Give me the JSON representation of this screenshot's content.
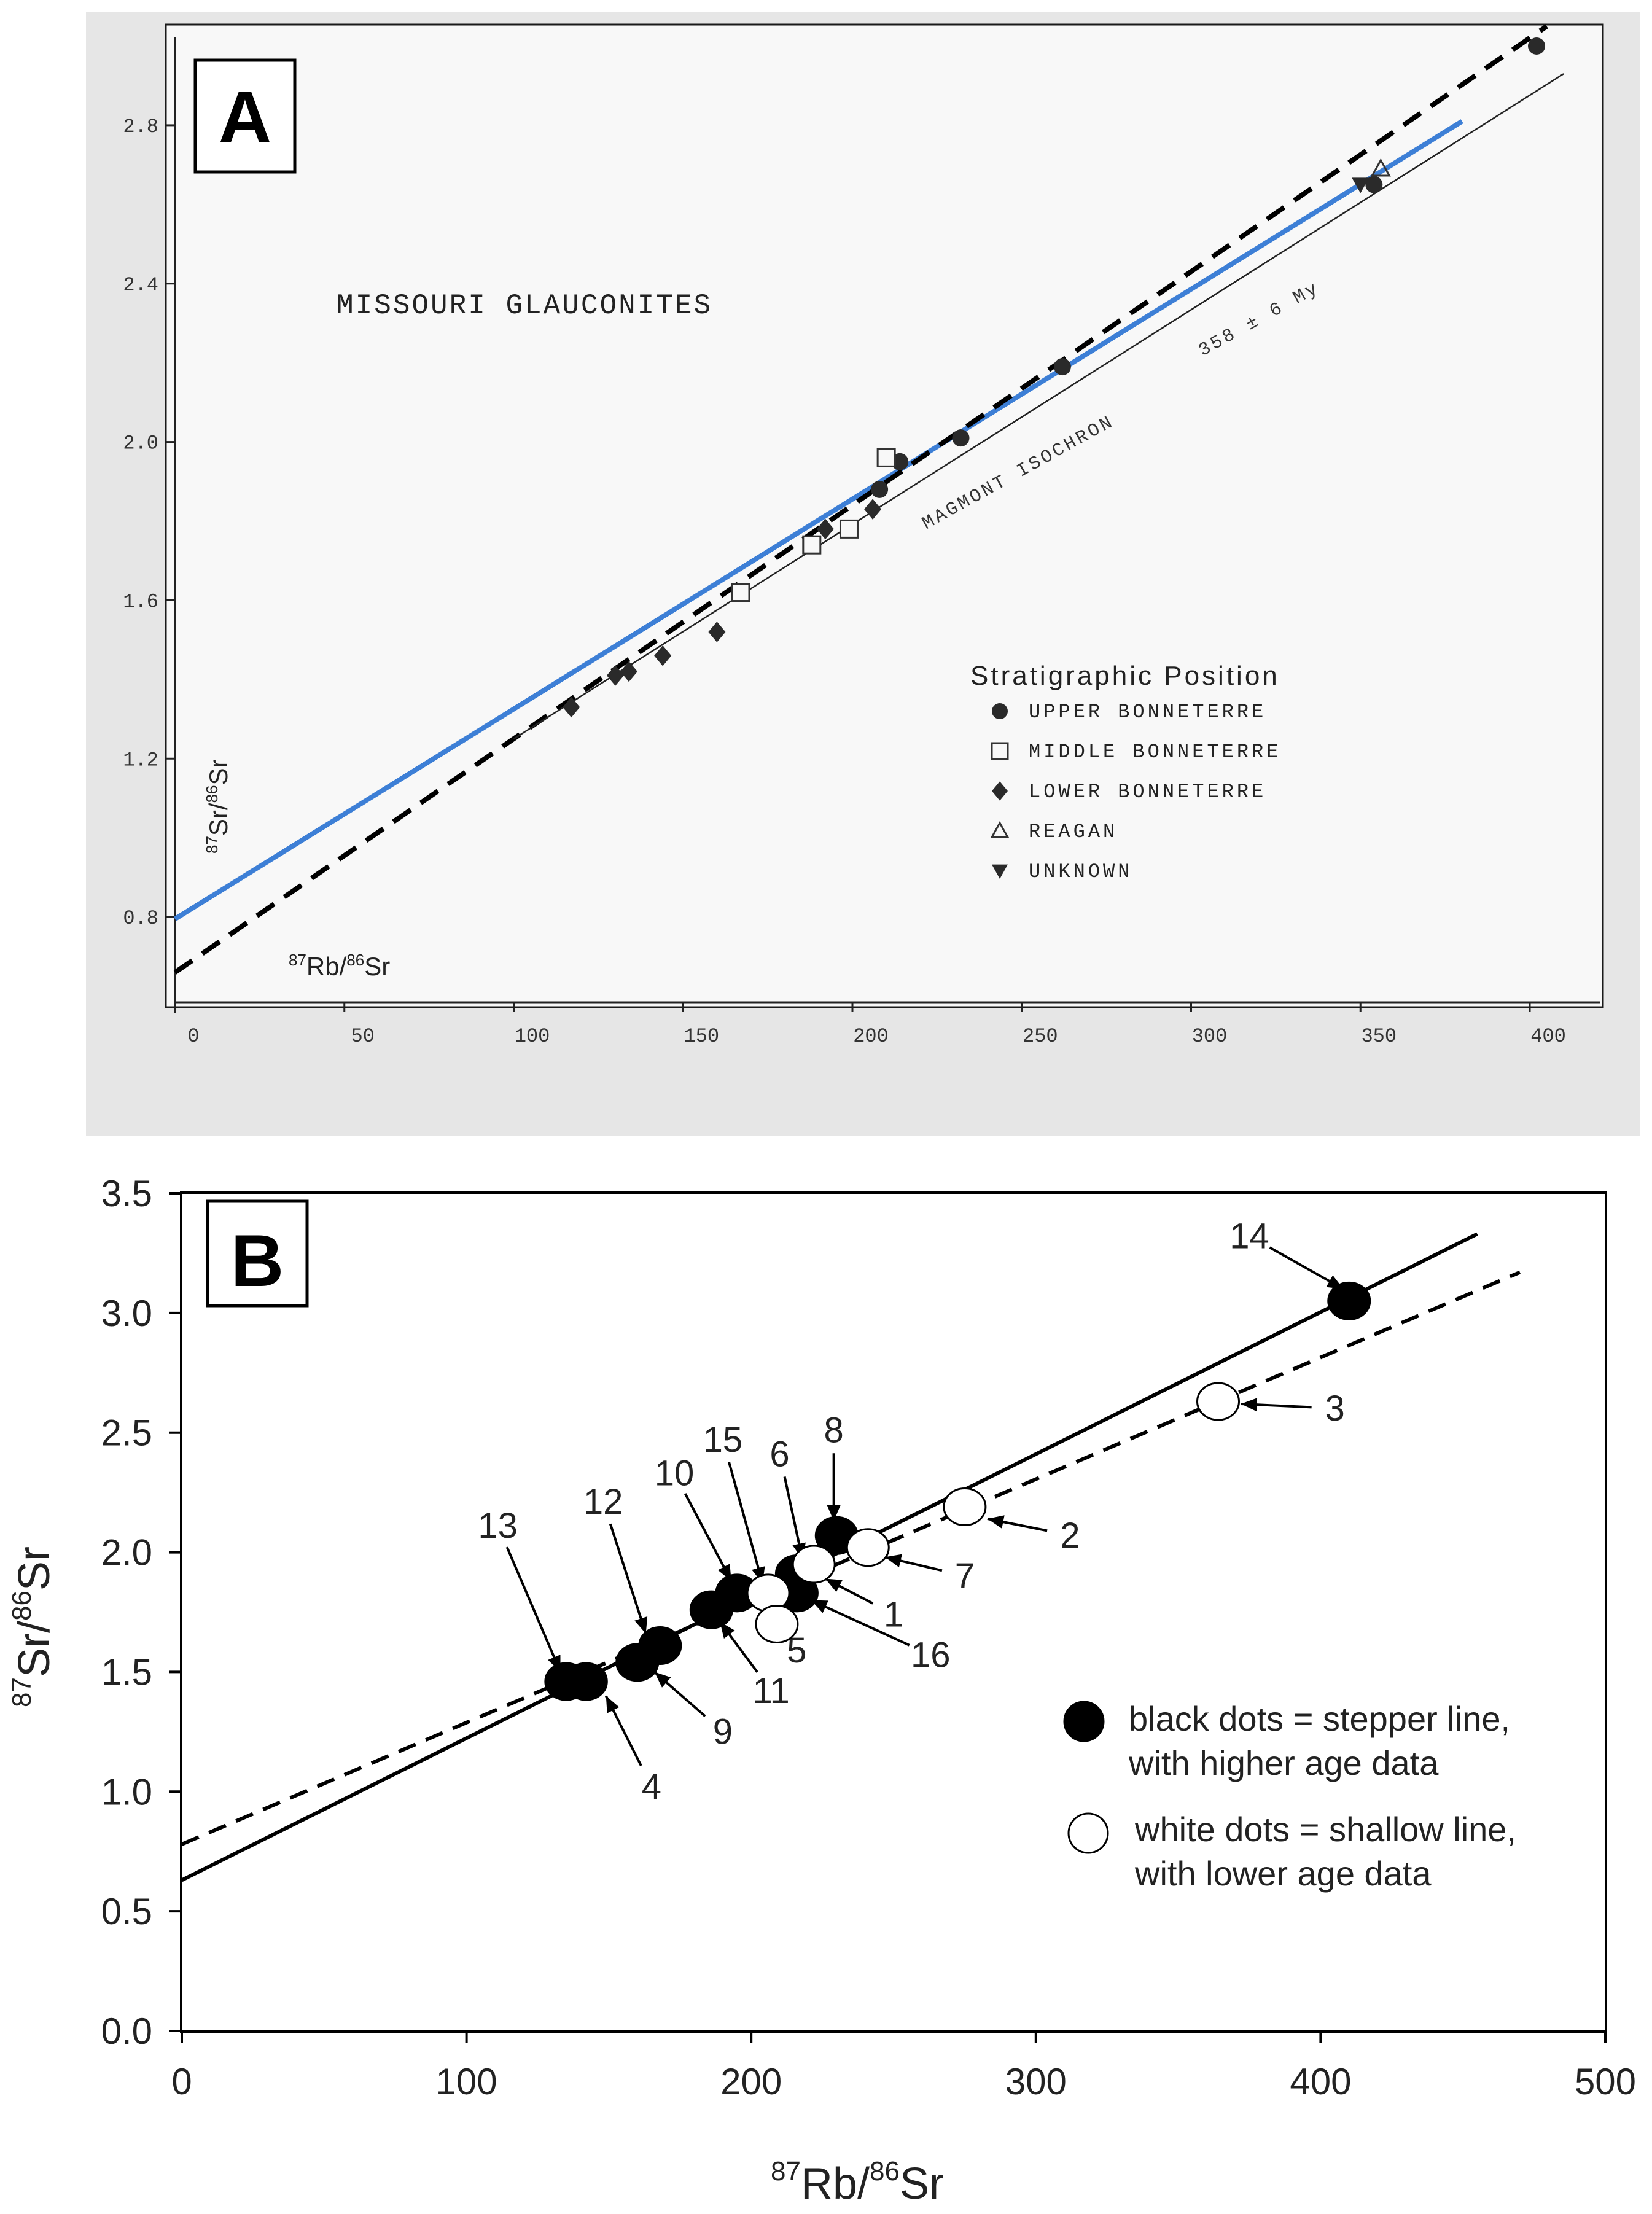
{
  "chart_data": [
    {
      "panel": "A",
      "type": "scatter",
      "title": "MISSOURI GLAUCONITES",
      "xlabel_sup1": "87",
      "xlabel_base1": "Rb/",
      "xlabel_sup2": "86",
      "xlabel_base2": "Sr",
      "ylabel_sup1": "87",
      "ylabel_base1": "Sr/",
      "ylabel_sup2": "86",
      "ylabel_base2": "Sr",
      "xlim": [
        0,
        400
      ],
      "ylim": [
        0.6,
        3.0
      ],
      "x_ticks": [
        0,
        50,
        100,
        150,
        200,
        250,
        300,
        350,
        400
      ],
      "x_tick_labels": [
        "0",
        "50",
        "100",
        "150",
        "200",
        "250",
        "300",
        "350",
        "400"
      ],
      "y_ticks": [
        0.8,
        1.2,
        1.6,
        2.0,
        2.4,
        2.8
      ],
      "y_tick_labels": [
        "0.8",
        "1.2",
        "1.6",
        "2.0",
        "2.4",
        "2.8"
      ],
      "isochron_label": "MAGMONT ISOCHRON",
      "age_label": "358 ± 6 My",
      "legend_title": "Stratigraphic Position",
      "legend": [
        {
          "marker": "circle",
          "label": "UPPER BONNETERRE"
        },
        {
          "marker": "square",
          "label": "MIDDLE BONNETERRE"
        },
        {
          "marker": "diamond",
          "label": "LOWER BONNETERRE"
        },
        {
          "marker": "triangle-up",
          "label": "REAGAN"
        },
        {
          "marker": "triangle-down",
          "label": "UNKNOWN"
        }
      ],
      "lines": [
        {
          "name": "blue fit",
          "style": "solid",
          "color": "#3d7fd6",
          "x": [
            0,
            380
          ],
          "y": [
            0.795,
            2.81
          ]
        },
        {
          "name": "dashed fit",
          "style": "dashed",
          "color": "#000000",
          "x": [
            0,
            405
          ],
          "y": [
            0.66,
            3.05
          ]
        },
        {
          "name": "Magmont isochron",
          "style": "thin",
          "color": "#222222",
          "x": [
            100,
            410
          ],
          "y": [
            1.25,
            2.93
          ]
        }
      ],
      "series": [
        {
          "name": "UPPER BONNETERRE",
          "marker": "circle",
          "points": [
            [
              402,
              3.0
            ],
            [
              354,
              2.65
            ],
            [
              262,
              2.19
            ],
            [
              232,
              2.01
            ],
            [
              214,
              1.95
            ],
            [
              208,
              1.88
            ]
          ]
        },
        {
          "name": "MIDDLE BONNETERRE",
          "marker": "square",
          "points": [
            [
              210,
              1.96
            ],
            [
              199,
              1.78
            ],
            [
              188,
              1.74
            ],
            [
              167,
              1.62
            ]
          ]
        },
        {
          "name": "LOWER BONNETERRE",
          "marker": "diamond",
          "points": [
            [
              206,
              1.83
            ],
            [
              192,
              1.78
            ],
            [
              160,
              1.52
            ],
            [
              144,
              1.46
            ],
            [
              134,
              1.42
            ],
            [
              130,
              1.41
            ],
            [
              117,
              1.33
            ]
          ]
        },
        {
          "name": "REAGAN",
          "marker": "triangle-up",
          "points": [
            [
              356,
              2.69
            ]
          ]
        },
        {
          "name": "UNKNOWN",
          "marker": "triangle-down",
          "points": [
            [
              350,
              2.65
            ]
          ]
        }
      ]
    },
    {
      "panel": "B",
      "type": "scatter",
      "title": "",
      "xlabel_sup1": "87",
      "xlabel_base1": "Rb/",
      "xlabel_sup2": "86",
      "xlabel_base2": "Sr",
      "ylabel_sup1": "87",
      "ylabel_base1": "Sr/",
      "ylabel_sup2": "86",
      "ylabel_base2": "Sr",
      "xlim": [
        0,
        500
      ],
      "ylim": [
        0.0,
        3.5
      ],
      "x_ticks": [
        0,
        100,
        200,
        300,
        400,
        500
      ],
      "x_tick_labels": [
        "0",
        "100",
        "200",
        "300",
        "400",
        "500"
      ],
      "y_ticks": [
        0.0,
        0.5,
        1.0,
        1.5,
        2.0,
        2.5,
        3.0,
        3.5
      ],
      "y_tick_labels": [
        "0.0",
        "0.5",
        "1.0",
        "1.5",
        "2.0",
        "2.5",
        "3.0",
        "3.5"
      ],
      "legend": [
        {
          "marker": "filled",
          "line1": "black dots = stepper line,",
          "line2": "with higher age data"
        },
        {
          "marker": "open",
          "line1": "white dots = shallow line,",
          "line2": "with lower age data"
        }
      ],
      "lines": [
        {
          "name": "steeper line",
          "style": "solid",
          "x": [
            0,
            455
          ],
          "y": [
            0.63,
            3.33
          ]
        },
        {
          "name": "shallow line",
          "style": "dashed",
          "x": [
            0,
            470
          ],
          "y": [
            0.78,
            3.17
          ]
        }
      ],
      "series": [
        {
          "name": "black dots",
          "fill": "filled",
          "points": [
            {
              "id": "14",
              "x": 410,
              "y": 3.05
            },
            {
              "id": "8",
              "x": 230,
              "y": 2.07
            },
            {
              "id": "6",
              "x": 216,
              "y": 1.91
            },
            {
              "id": "16",
              "x": 216,
              "y": 1.83
            },
            {
              "id": "10",
              "x": 195,
              "y": 1.83
            },
            {
              "id": "11",
              "x": 186,
              "y": 1.76
            },
            {
              "id": "12",
              "x": 168,
              "y": 1.61
            },
            {
              "id": "9",
              "x": 160,
              "y": 1.54
            },
            {
              "id": "13",
              "x": 135,
              "y": 1.46
            },
            {
              "id": "4",
              "x": 142,
              "y": 1.46
            }
          ]
        },
        {
          "name": "white dots",
          "fill": "open",
          "points": [
            {
              "id": "3",
              "x": 364,
              "y": 2.63
            },
            {
              "id": "2",
              "x": 275,
              "y": 2.19
            },
            {
              "id": "7",
              "x": 241,
              "y": 2.02
            },
            {
              "id": "1",
              "x": 222,
              "y": 1.95
            },
            {
              "id": "15",
              "x": 206,
              "y": 1.83
            },
            {
              "id": "5",
              "x": 209,
              "y": 1.7
            }
          ]
        }
      ],
      "annotations": [
        {
          "label": "14",
          "tx": 375,
          "ty": 3.27,
          "ax": 408,
          "ay": 3.1
        },
        {
          "label": "3",
          "tx": 405,
          "ty": 2.55,
          "ax": 372,
          "ay": 2.62
        },
        {
          "label": "2",
          "tx": 312,
          "ty": 2.02,
          "ax": 283,
          "ay": 2.14
        },
        {
          "label": "7",
          "tx": 275,
          "ty": 1.85,
          "ax": 247,
          "ay": 1.98
        },
        {
          "label": "8",
          "tx": 229,
          "ty": 2.46,
          "ax": 229,
          "ay": 2.13
        },
        {
          "label": "6",
          "tx": 210,
          "ty": 2.36,
          "ax": 218,
          "ay": 1.97
        },
        {
          "label": "15",
          "tx": 190,
          "ty": 2.42,
          "ax": 204,
          "ay": 1.87
        },
        {
          "label": "10",
          "tx": 173,
          "ty": 2.28,
          "ax": 193,
          "ay": 1.88
        },
        {
          "label": "1",
          "tx": 250,
          "ty": 1.69,
          "ax": 226,
          "ay": 1.89
        },
        {
          "label": "16",
          "tx": 263,
          "ty": 1.52,
          "ax": 221,
          "ay": 1.8
        },
        {
          "label": "5",
          "tx": 216,
          "ty": 1.54,
          "ax": 208,
          "ay": 1.69
        },
        {
          "label": "11",
          "tx": 207,
          "ty": 1.37,
          "ax": 189,
          "ay": 1.71
        },
        {
          "label": "12",
          "tx": 148,
          "ty": 2.16,
          "ax": 163,
          "ay": 1.66
        },
        {
          "label": "9",
          "tx": 190,
          "ty": 1.2,
          "ax": 166,
          "ay": 1.5
        },
        {
          "label": "13",
          "tx": 111,
          "ty": 2.06,
          "ax": 133,
          "ay": 1.5
        },
        {
          "label": "4",
          "tx": 165,
          "ty": 0.97,
          "ax": 149,
          "ay": 1.4
        }
      ]
    }
  ]
}
